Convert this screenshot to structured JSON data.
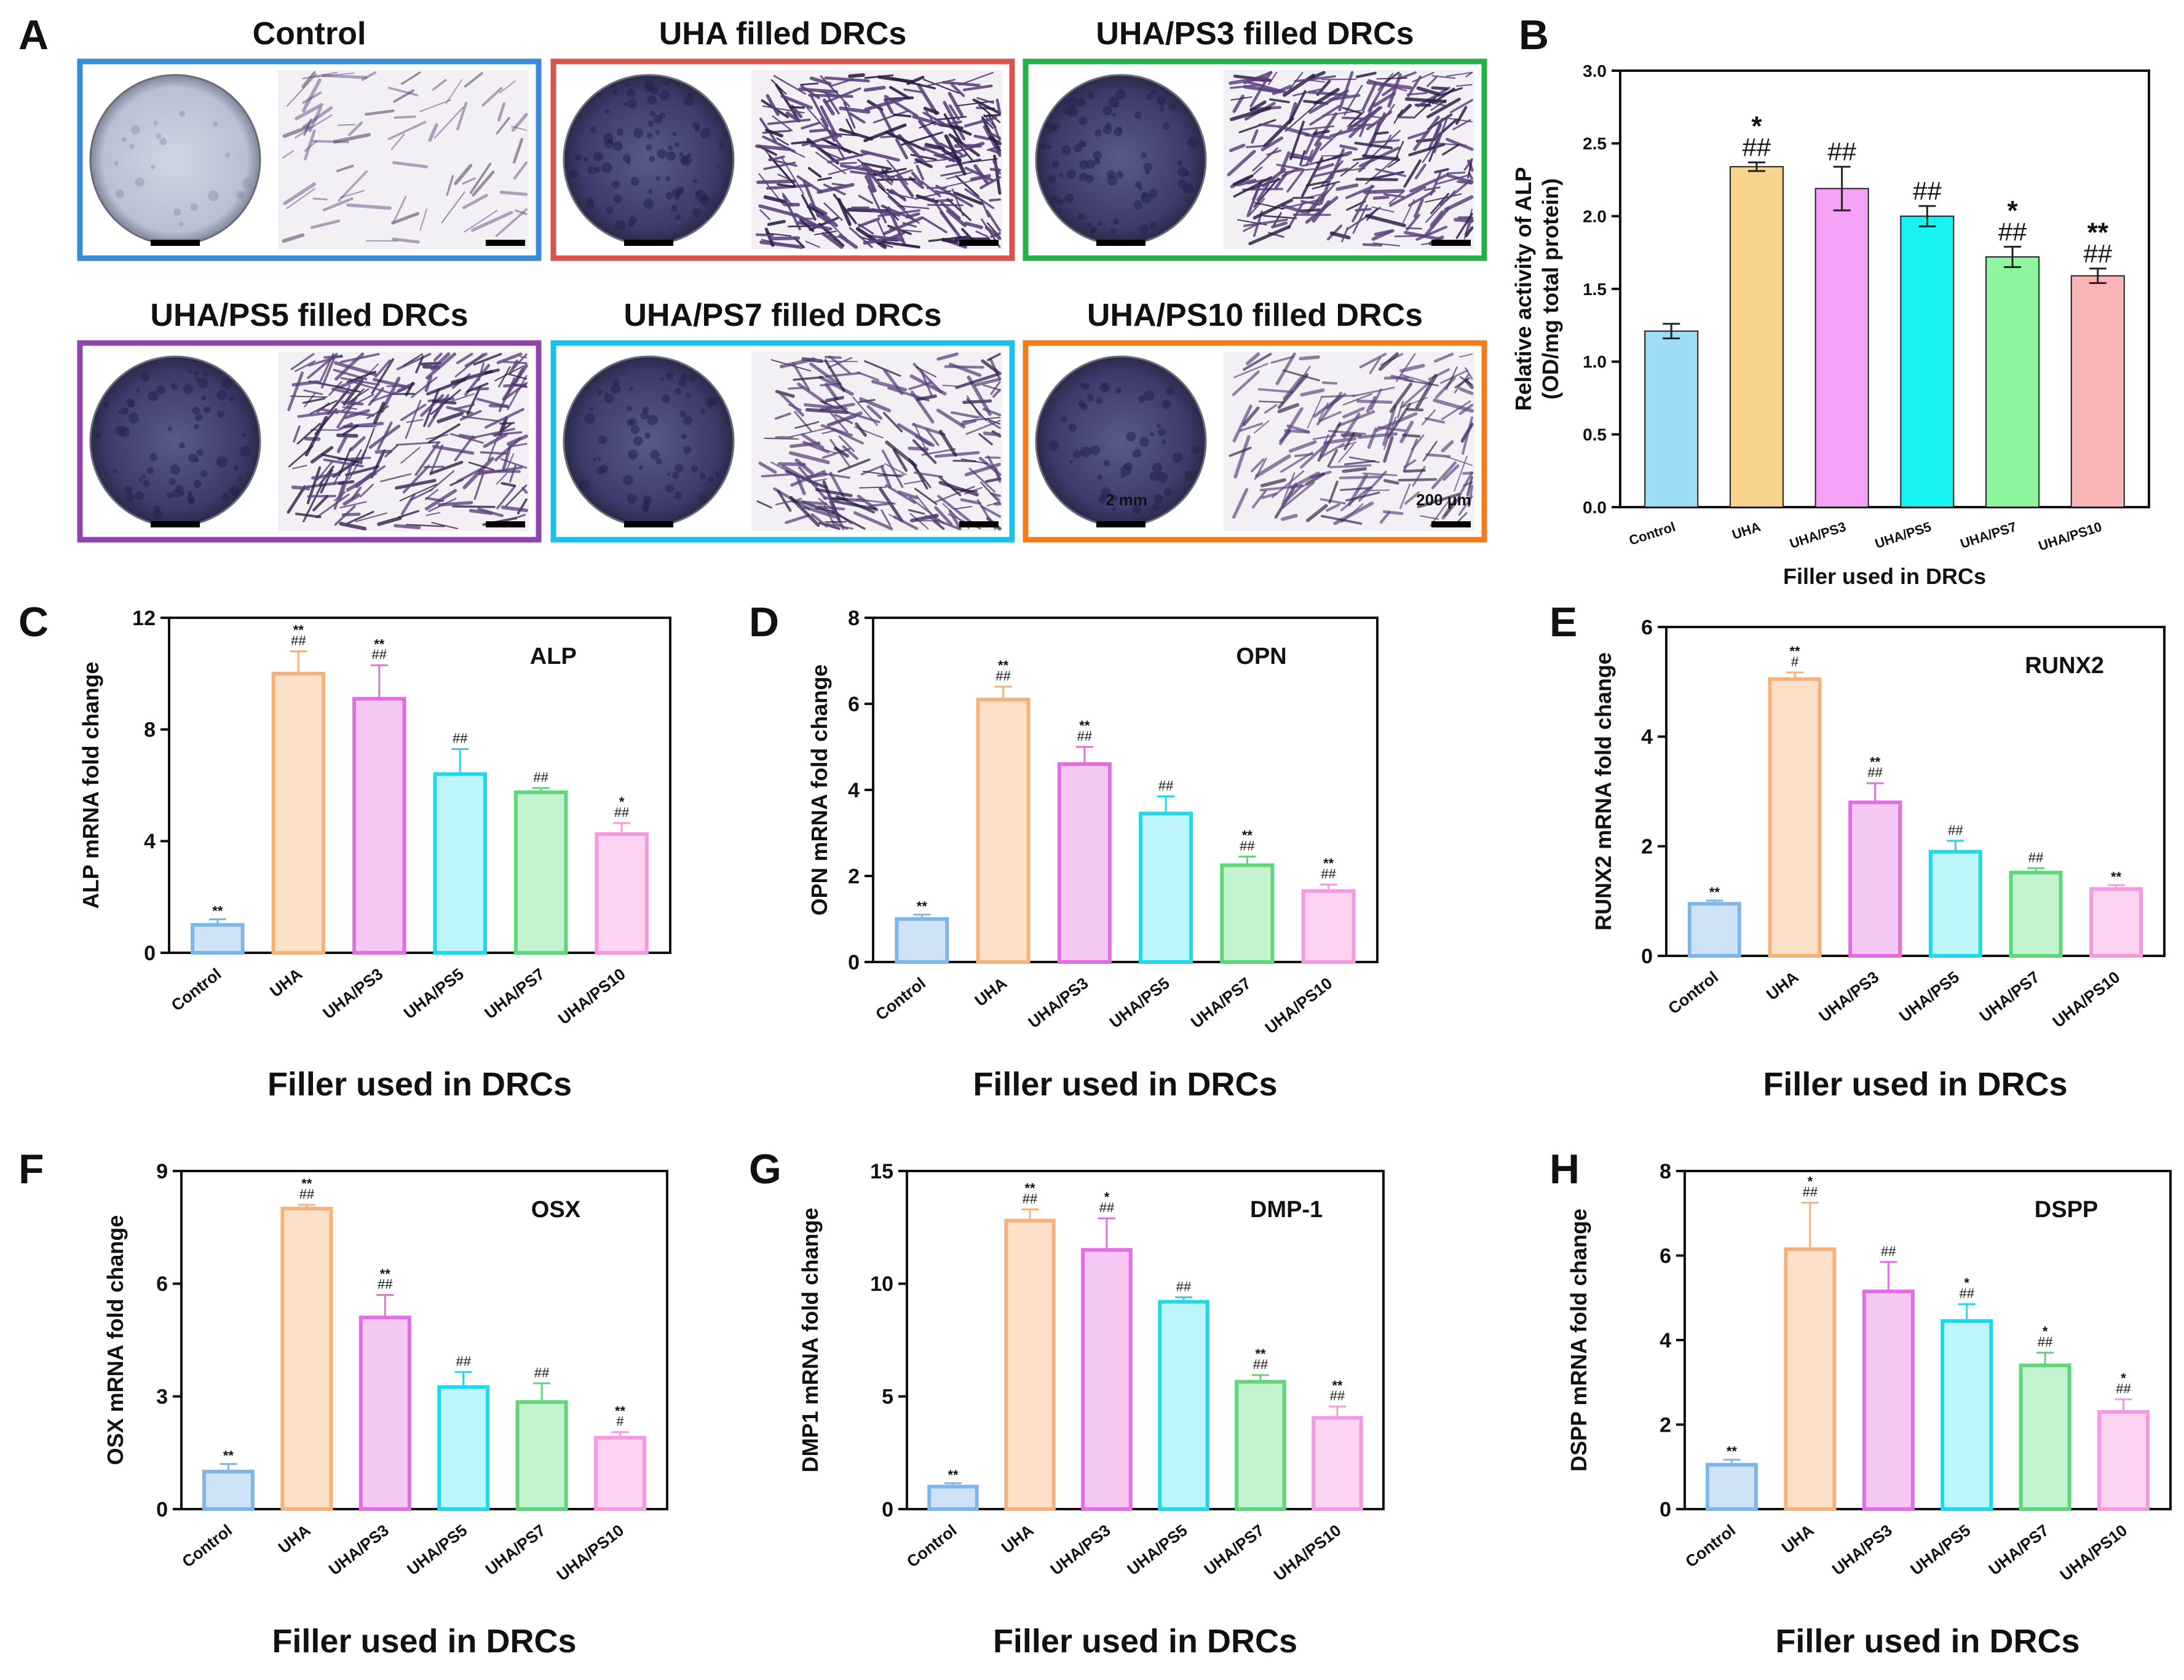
{
  "figure": {
    "panel_letters": [
      "A",
      "B",
      "C",
      "D",
      "E",
      "F",
      "G",
      "H"
    ]
  },
  "panel_a": {
    "tiles": [
      {
        "title": "Control",
        "color": "#3a8ad6",
        "density": 0.12
      },
      {
        "title": "UHA filled DRCs",
        "color": "#d9534f",
        "density": 0.95
      },
      {
        "title": "UHA/PS3 filled DRCs",
        "color": "#27ae48",
        "density": 0.85
      },
      {
        "title": "UHA/PS5 filled DRCs",
        "color": "#8e44ad",
        "density": 0.75
      },
      {
        "title": "UHA/PS7 filled DRCs",
        "color": "#1cc0e6",
        "density": 0.65
      },
      {
        "title": "UHA/PS10 filled DRCs",
        "color": "#f07c1e",
        "density": 0.5
      }
    ],
    "scale_dish": "2 mm",
    "scale_micro": "200 μm"
  },
  "chart_data": [
    {
      "id": "B",
      "type": "bar",
      "categories": [
        "Control",
        "UHA",
        "UHA/PS3",
        "UHA/PS5",
        "UHA/PS7",
        "UHA/PS10"
      ],
      "values": [
        1.21,
        2.34,
        2.19,
        2.0,
        1.72,
        1.59
      ],
      "errors": [
        0.05,
        0.03,
        0.15,
        0.07,
        0.07,
        0.05
      ],
      "annotations": [
        [
          "",
          ""
        ],
        [
          "*",
          "##"
        ],
        [
          "",
          "##"
        ],
        [
          "",
          "##"
        ],
        [
          "*",
          "##"
        ],
        [
          "**",
          "##"
        ]
      ],
      "ylabel": [
        "Relative activity of ALP",
        "(OD/mg total protein)"
      ],
      "xlabel": "Filler used in DRCs",
      "ylim": [
        0,
        3.0
      ],
      "yticks": [
        "0.0",
        "0.5",
        "1.0",
        "1.5",
        "2.0",
        "2.5",
        "3.0"
      ],
      "style": "solid",
      "colors": [
        "#9fdcf5",
        "#f8d38c",
        "#f5a1f5",
        "#19f2f2",
        "#8ff59f",
        "#f9b5b5"
      ]
    },
    {
      "id": "C",
      "type": "bar",
      "title": "ALP",
      "categories": [
        "Control",
        "UHA",
        "UHA/PS3",
        "UHA/PS5",
        "UHA/PS7",
        "UHA/PS10"
      ],
      "values": [
        1.0,
        10.0,
        9.1,
        6.4,
        5.75,
        4.25
      ],
      "errors": [
        0.2,
        0.8,
        1.2,
        0.9,
        0.15,
        0.4
      ],
      "annotations": [
        [
          "**",
          ""
        ],
        [
          "**",
          "##"
        ],
        [
          "**",
          "##"
        ],
        [
          "",
          "##"
        ],
        [
          "",
          "##"
        ],
        [
          "*",
          "##"
        ]
      ],
      "ylabel": [
        "ALP mRNA fold change"
      ],
      "xlabel": "Filler used in DRCs",
      "ylim": [
        0,
        12
      ],
      "yticks": [
        "0",
        "4",
        "8",
        "12"
      ],
      "style": "outline",
      "colors": [
        "#7eb6ec",
        "#f6b27a",
        "#e46ce4",
        "#1fd8e8",
        "#5ed67a",
        "#f39ae0"
      ],
      "fills": [
        "#cfe3f8",
        "#fde0c8",
        "#f6c8f4",
        "#bdf5fb",
        "#c4f3cf",
        "#fcd3f1"
      ]
    },
    {
      "id": "D",
      "type": "bar",
      "title": "OPN",
      "categories": [
        "Control",
        "UHA",
        "UHA/PS3",
        "UHA/PS5",
        "UHA/PS7",
        "UHA/PS10"
      ],
      "values": [
        1.0,
        6.1,
        4.6,
        3.45,
        2.25,
        1.65
      ],
      "errors": [
        0.1,
        0.3,
        0.4,
        0.4,
        0.2,
        0.15
      ],
      "annotations": [
        [
          "**",
          ""
        ],
        [
          "**",
          "##"
        ],
        [
          "**",
          "##"
        ],
        [
          "",
          "##"
        ],
        [
          "**",
          "##"
        ],
        [
          "**",
          "##"
        ]
      ],
      "ylabel": [
        "OPN mRNA fold change"
      ],
      "xlabel": "Filler used in DRCs",
      "ylim": [
        0,
        8
      ],
      "yticks": [
        "0",
        "2",
        "4",
        "6",
        "8"
      ],
      "style": "outline",
      "colors": [
        "#7eb6ec",
        "#f6b27a",
        "#e46ce4",
        "#1fd8e8",
        "#5ed67a",
        "#f39ae0"
      ],
      "fills": [
        "#cfe3f8",
        "#fde0c8",
        "#f6c8f4",
        "#bdf5fb",
        "#c4f3cf",
        "#fcd3f1"
      ]
    },
    {
      "id": "E",
      "type": "bar",
      "title": "RUNX2",
      "categories": [
        "Control",
        "UHA",
        "UHA/PS3",
        "UHA/PS5",
        "UHA/PS7",
        "UHA/PS10"
      ],
      "values": [
        0.95,
        5.05,
        2.8,
        1.9,
        1.52,
        1.22
      ],
      "errors": [
        0.06,
        0.12,
        0.35,
        0.2,
        0.08,
        0.07
      ],
      "annotations": [
        [
          "**",
          ""
        ],
        [
          "**",
          "#"
        ],
        [
          "**",
          "##"
        ],
        [
          "",
          "##"
        ],
        [
          "",
          "##"
        ],
        [
          "**",
          ""
        ]
      ],
      "ylabel": [
        "RUNX2 mRNA fold change"
      ],
      "xlabel": "Filler used in DRCs",
      "ylim": [
        0,
        6
      ],
      "yticks": [
        "0",
        "2",
        "4",
        "6"
      ],
      "style": "outline",
      "colors": [
        "#7eb6ec",
        "#f6b27a",
        "#e46ce4",
        "#1fd8e8",
        "#5ed67a",
        "#f39ae0"
      ],
      "fills": [
        "#cfe3f8",
        "#fde0c8",
        "#f6c8f4",
        "#bdf5fb",
        "#c4f3cf",
        "#fcd3f1"
      ]
    },
    {
      "id": "F",
      "type": "bar",
      "title": "OSX",
      "categories": [
        "Control",
        "UHA",
        "UHA/PS3",
        "UHA/PS5",
        "UHA/PS7",
        "UHA/PS10"
      ],
      "values": [
        1.0,
        8.0,
        5.1,
        3.25,
        2.85,
        1.9
      ],
      "errors": [
        0.2,
        0.1,
        0.6,
        0.4,
        0.5,
        0.15
      ],
      "annotations": [
        [
          "**",
          ""
        ],
        [
          "**",
          "##"
        ],
        [
          "**",
          "##"
        ],
        [
          "",
          "##"
        ],
        [
          "",
          "##"
        ],
        [
          "**",
          "#"
        ]
      ],
      "ylabel": [
        "OSX mRNA fold change"
      ],
      "xlabel": "Filler used in DRCs",
      "ylim": [
        0,
        9
      ],
      "yticks": [
        "0",
        "3",
        "6",
        "9"
      ],
      "style": "outline",
      "colors": [
        "#7eb6ec",
        "#f6b27a",
        "#e46ce4",
        "#1fd8e8",
        "#5ed67a",
        "#f39ae0"
      ],
      "fills": [
        "#cfe3f8",
        "#fde0c8",
        "#f6c8f4",
        "#bdf5fb",
        "#c4f3cf",
        "#fcd3f1"
      ]
    },
    {
      "id": "G",
      "type": "bar",
      "title": "DMP-1",
      "categories": [
        "Control",
        "UHA",
        "UHA/PS3",
        "UHA/PS5",
        "UHA/PS7",
        "UHA/PS10"
      ],
      "values": [
        1.0,
        12.8,
        11.5,
        9.2,
        5.65,
        4.05
      ],
      "errors": [
        0.15,
        0.5,
        1.4,
        0.2,
        0.3,
        0.5
      ],
      "annotations": [
        [
          "**",
          ""
        ],
        [
          "**",
          "##"
        ],
        [
          "*",
          "##"
        ],
        [
          "",
          "##"
        ],
        [
          "**",
          "##"
        ],
        [
          "**",
          "##"
        ]
      ],
      "ylabel": [
        "DMP1 mRNA fold change"
      ],
      "xlabel": "Filler used in DRCs",
      "ylim": [
        0,
        15
      ],
      "yticks": [
        "0",
        "5",
        "10",
        "15"
      ],
      "style": "outline",
      "colors": [
        "#7eb6ec",
        "#f6b27a",
        "#e46ce4",
        "#1fd8e8",
        "#5ed67a",
        "#f39ae0"
      ],
      "fills": [
        "#cfe3f8",
        "#fde0c8",
        "#f6c8f4",
        "#bdf5fb",
        "#c4f3cf",
        "#fcd3f1"
      ]
    },
    {
      "id": "H",
      "type": "bar",
      "title": "DSPP",
      "categories": [
        "Control",
        "UHA",
        "UHA/PS3",
        "UHA/PS5",
        "UHA/PS7",
        "UHA/PS10"
      ],
      "values": [
        1.05,
        6.15,
        5.15,
        4.45,
        3.4,
        2.3
      ],
      "errors": [
        0.12,
        1.1,
        0.7,
        0.4,
        0.3,
        0.3
      ],
      "annotations": [
        [
          "**",
          ""
        ],
        [
          "*",
          "##"
        ],
        [
          "",
          "##"
        ],
        [
          "*",
          "##"
        ],
        [
          "*",
          "##"
        ],
        [
          "*",
          "##"
        ]
      ],
      "ylabel": [
        "DSPP mRNA fold change"
      ],
      "xlabel": "Filler used in DRCs",
      "ylim": [
        0,
        8
      ],
      "yticks": [
        "0",
        "2",
        "4",
        "6",
        "8"
      ],
      "style": "outline",
      "colors": [
        "#7eb6ec",
        "#f6b27a",
        "#e46ce4",
        "#1fd8e8",
        "#5ed67a",
        "#f39ae0"
      ],
      "fills": [
        "#cfe3f8",
        "#fde0c8",
        "#f6c8f4",
        "#bdf5fb",
        "#c4f3cf",
        "#fcd3f1"
      ]
    }
  ]
}
